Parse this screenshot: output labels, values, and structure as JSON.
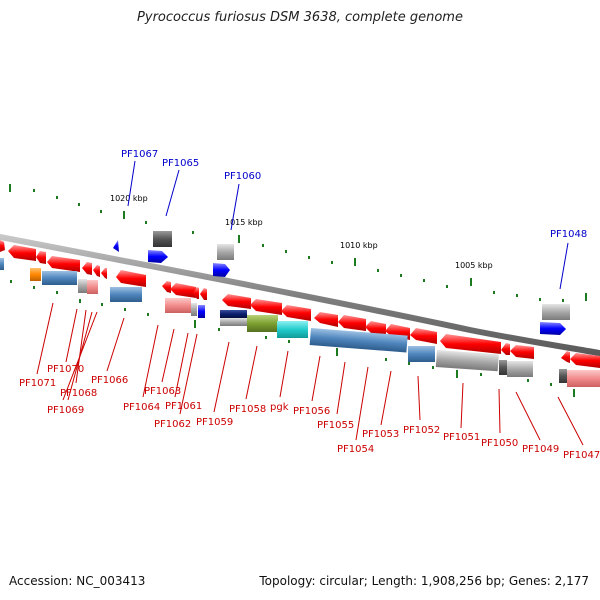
{
  "title": "Pyrococcus furiosus DSM 3638, complete genome",
  "footer": {
    "accession": "Accession: NC_003413",
    "topology": "Topology: circular; Length: 1,908,256 bp; Genes: 2,177"
  },
  "colors": {
    "backbone": "#808080",
    "gene_red": "#ff0000",
    "gene_blue": "#0000ff",
    "label_red": "#cc0000",
    "label_blue": "#0000cc",
    "tick": "#1e7a1e",
    "cds_blue": "#4f86bd",
    "cds_gray": "#a9a9a9",
    "cds_pink": "#f28c8c",
    "cds_olive": "#7da031",
    "cds_cyan": "#22cccc",
    "cds_navy": "#0c1f6e",
    "cds_orange": "#ff8800"
  },
  "scale_labels": [
    "1020 kbp",
    "1015 kbp",
    "1010 kbp",
    "1005 kbp"
  ],
  "upper_labels": [
    "PF1067",
    "PF1065",
    "PF1060",
    "PF1048"
  ],
  "lower_labels": [
    "PF1071",
    "PF1070",
    "PF1068",
    "PF1069",
    "PF1066",
    "PF1063",
    "PF1064",
    "PF1061",
    "PF1062",
    "PF1059",
    "PF1058",
    "pgk",
    "PF1056",
    "PF1055",
    "PF1054",
    "PF1053",
    "PF1052",
    "PF1051",
    "PF1050",
    "PF1049",
    "PF1047"
  ]
}
